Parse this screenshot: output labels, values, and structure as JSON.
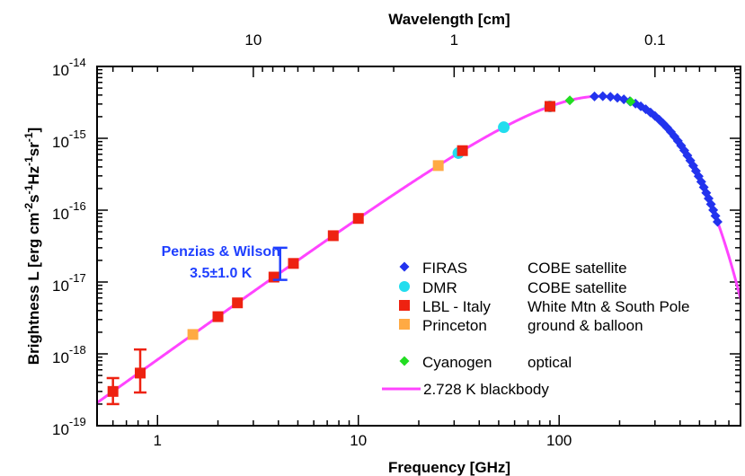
{
  "chart_data": {
    "type": "scatter",
    "xlabel": "Frequency [GHz]",
    "x2label": "Wavelength [cm]",
    "ylabel": "Brightness L [erg cm-2 s-1 Hz-1 sr-1]",
    "xscale": "log",
    "yscale": "log",
    "xlim": [
      0.5,
      800
    ],
    "ylim": [
      1e-19,
      1e-14
    ],
    "x_ticks": [
      {
        "value": 1,
        "label": "1"
      },
      {
        "value": 10,
        "label": "10"
      },
      {
        "value": 100,
        "label": "100"
      }
    ],
    "x2_ticks": [
      {
        "value": 10,
        "label": "10"
      },
      {
        "value": 1,
        "label": "1"
      },
      {
        "value": 0.1,
        "label": "0.1"
      }
    ],
    "y_ticks": [
      {
        "exp": -19,
        "label": "10",
        "sup": "-19"
      },
      {
        "exp": -18,
        "label": "10",
        "sup": "-18"
      },
      {
        "exp": -17,
        "label": "10",
        "sup": "-17"
      },
      {
        "exp": -16,
        "label": "10",
        "sup": "-16"
      },
      {
        "exp": -15,
        "label": "10",
        "sup": "-15"
      },
      {
        "exp": -14,
        "label": "10",
        "sup": "-14"
      }
    ],
    "ylabel_parts": [
      {
        "t": "Brightness L [erg cm",
        "s": ""
      },
      {
        "t": "-2",
        "s": "sup"
      },
      {
        "t": "s",
        "s": ""
      },
      {
        "t": "-1",
        "s": "sup"
      },
      {
        "t": "Hz",
        "s": ""
      },
      {
        "t": "-1",
        "s": "sup"
      },
      {
        "t": "sr",
        "s": ""
      },
      {
        "t": "-1",
        "s": "sup"
      },
      {
        "t": "]",
        "s": ""
      }
    ],
    "blackbody": {
      "name": "2.728 K blackbody",
      "temperature_K": 2.728,
      "color": "#ff44ff"
    },
    "series": [
      {
        "name": "FIRAS",
        "description": "COBE satellite",
        "marker": "diamond",
        "color": "#2233ee",
        "x": [
          150,
          165,
          180,
          195,
          210,
          225,
          240,
          255,
          270,
          285,
          300,
          315,
          330,
          345,
          360,
          375,
          390,
          405,
          420,
          435,
          450,
          465,
          480,
          495,
          510,
          525,
          540,
          555,
          570,
          585,
          600,
          615
        ]
      },
      {
        "name": "DMR",
        "description": "COBE satellite",
        "marker": "circle",
        "color": "#22ddee",
        "x": [
          31.5,
          53,
          90
        ]
      },
      {
        "name": "LBL - Italy",
        "description": "White Mtn & South Pole",
        "marker": "square",
        "color": "#ee2211",
        "x": [
          0.6,
          0.82,
          2.0,
          2.5,
          3.8,
          4.75,
          7.5,
          10,
          33,
          90
        ],
        "y": [
          3e-19,
          5.4e-19,
          null,
          null,
          null,
          null,
          null,
          null,
          null,
          null
        ],
        "y_err_low": [
          2e-19,
          2.9e-19
        ],
        "y_err_high": [
          4.6e-19,
          1.15e-18
        ]
      },
      {
        "name": "Princeton",
        "description": "ground & balloon",
        "marker": "square",
        "color": "#ffaa44",
        "x": [
          1.5,
          25
        ]
      },
      {
        "name": "Cyanogen",
        "description": "optical",
        "marker": "diamond",
        "color": "#22dd22",
        "x": [
          113,
          227
        ]
      }
    ],
    "annotations": [
      {
        "text": "Penzias & Wilson",
        "subtext": "3.5±1.0 K",
        "color": "#1f3fff",
        "x": 4.08,
        "y_low": 1.07e-17,
        "y_high": 3e-17
      }
    ],
    "legend_position": "bottom-right"
  }
}
